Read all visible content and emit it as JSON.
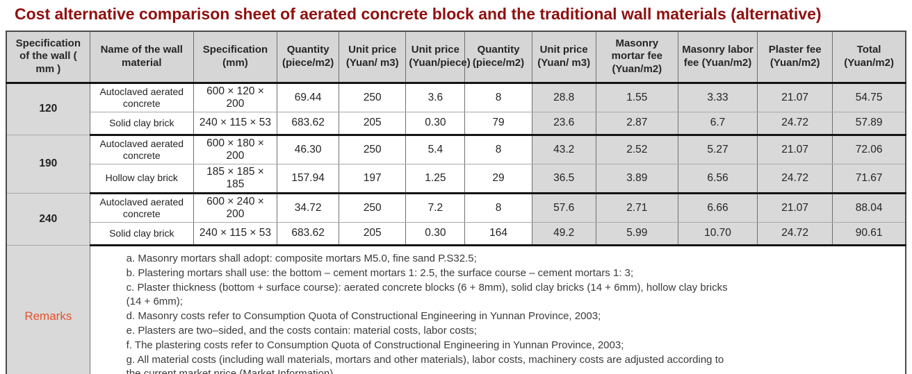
{
  "title": "Cost alternative comparison sheet of aerated concrete block and the traditional wall materials (alternative)",
  "colors": {
    "title_text": "#8f1010",
    "remarks_label_text": "#e5512a",
    "cell_gray": "#d9d9d9",
    "heavy_border": "#141414"
  },
  "table": {
    "headers": [
      "Specification of the wall ( mm )",
      "Name of the wall material",
      "Specification (mm)",
      "Quantity (piece/m2)",
      "Unit price (Yuan/ m3)",
      "Unit price (Yuan/piece)",
      "Quantity (piece/m2)",
      "Unit price (Yuan/ m3)",
      "Masonry mortar fee (Yuan/m2)",
      "Masonry labor fee (Yuan/m2)",
      "Plaster fee (Yuan/m2)",
      "Total (Yuan/m2)"
    ],
    "groups": [
      {
        "spec": "120",
        "rows": [
          {
            "cells": [
              "Autoclaved aerated concrete",
              "600 × 120 × 200",
              "69.44",
              "250",
              "3.6",
              "8",
              "28.8",
              "1.55",
              "3.33",
              "21.07",
              "54.75"
            ]
          },
          {
            "cells": [
              "Solid clay brick",
              "240 × 115 × 53",
              "683.62",
              "205",
              "0.30",
              "79",
              "23.6",
              "2.87",
              "6.7",
              "24.72",
              "57.89"
            ]
          }
        ]
      },
      {
        "spec": "190",
        "rows": [
          {
            "cells": [
              "Autoclaved aerated concrete",
              "600 × 180 × 200",
              "46.30",
              "250",
              "5.4",
              "8",
              "43.2",
              "2.52",
              "5.27",
              "21.07",
              "72.06"
            ]
          },
          {
            "cells": [
              "Hollow clay brick",
              "185 × 185 × 185",
              "157.94",
              "197",
              "1.25",
              "29",
              "36.5",
              "3.89",
              "6.56",
              "24.72",
              "71.67"
            ]
          }
        ]
      },
      {
        "spec": "240",
        "rows": [
          {
            "cells": [
              "Autoclaved aerated concrete",
              "600 × 240 × 200",
              "34.72",
              "250",
              "7.2",
              "8",
              "57.6",
              "2.71",
              "6.66",
              "21.07",
              "88.04"
            ]
          },
          {
            "cells": [
              "Solid clay brick",
              "240 × 115 × 53",
              "683.62",
              "205",
              "0.30",
              "164",
              "49.2",
              "5.99",
              "10.70",
              "24.72",
              "90.61"
            ]
          }
        ]
      }
    ],
    "remarks_label": "Remarks",
    "remarks": [
      "a. Masonry mortars shall adopt: composite mortars M5.0, fine sand P.S32.5;",
      "b. Plastering mortars shall use: the bottom – cement mortars 1: 2.5, the surface course – cement mortars 1: 3;",
      "c. Plaster thickness (bottom + surface course): aerated concrete blocks (6 + 8mm), solid clay bricks (14 + 6mm), hollow clay bricks (14 + 6mm);",
      "d. Masonry costs refer to Consumption Quota of Constructional Engineering in Yunnan Province, 2003;",
      "e. Plasters are two–sided, and the costs contain: material costs, labor costs;",
      "f. The plastering costs refer to Consumption Quota of Constructional Engineering in Yunnan Province, 2003;",
      "g. All material costs (including wall materials, mortars and other materials), labor costs, machinery costs are adjusted according to the current market price (Market Information)."
    ]
  }
}
